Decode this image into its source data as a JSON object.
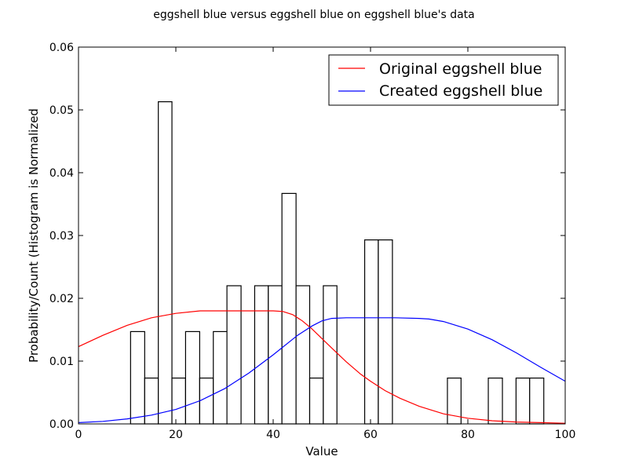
{
  "chart_data": {
    "type": "histogram-with-lines",
    "title": "eggshell blue versus eggshell blue on eggshell blue's data",
    "xlabel": "Value",
    "ylabel": "Probability/Count (Histogram is Normalized",
    "xlim": [
      0,
      100
    ],
    "ylim": [
      0,
      0.06
    ],
    "xticks": [
      0,
      20,
      40,
      60,
      80,
      100
    ],
    "xtick_labels": [
      "0",
      "20",
      "40",
      "60",
      "80",
      "100"
    ],
    "yticks": [
      0,
      0.01,
      0.02,
      0.03,
      0.04,
      0.05,
      0.06
    ],
    "ytick_labels": [
      "0.00",
      "0.01",
      "0.02",
      "0.03",
      "0.04",
      "0.05",
      "0.06"
    ],
    "grid": false,
    "legend_position": "top-right",
    "bins": [
      {
        "x0": 10.7,
        "x1": 13.6,
        "value": 0.0147
      },
      {
        "x0": 13.6,
        "x1": 16.4,
        "value": 0.0073
      },
      {
        "x0": 16.4,
        "x1": 19.2,
        "value": 0.0513
      },
      {
        "x0": 19.2,
        "x1": 22.0,
        "value": 0.0073
      },
      {
        "x0": 22.0,
        "x1": 24.9,
        "value": 0.0147
      },
      {
        "x0": 24.9,
        "x1": 27.7,
        "value": 0.0073
      },
      {
        "x0": 27.7,
        "x1": 30.5,
        "value": 0.0147
      },
      {
        "x0": 30.5,
        "x1": 33.4,
        "value": 0.022
      },
      {
        "x0": 33.4,
        "x1": 36.2,
        "value": 0.0
      },
      {
        "x0": 36.2,
        "x1": 39.0,
        "value": 0.022
      },
      {
        "x0": 39.0,
        "x1": 41.8,
        "value": 0.022
      },
      {
        "x0": 41.8,
        "x1": 44.7,
        "value": 0.0367
      },
      {
        "x0": 44.7,
        "x1": 47.5,
        "value": 0.022
      },
      {
        "x0": 47.5,
        "x1": 50.3,
        "value": 0.0073
      },
      {
        "x0": 50.3,
        "x1": 53.1,
        "value": 0.022
      },
      {
        "x0": 53.1,
        "x1": 56.0,
        "value": 0.0
      },
      {
        "x0": 56.0,
        "x1": 58.8,
        "value": 0.0
      },
      {
        "x0": 58.8,
        "x1": 61.6,
        "value": 0.0293
      },
      {
        "x0": 61.6,
        "x1": 64.5,
        "value": 0.0293
      },
      {
        "x0": 64.5,
        "x1": 67.3,
        "value": 0.0
      },
      {
        "x0": 67.3,
        "x1": 70.1,
        "value": 0.0
      },
      {
        "x0": 70.1,
        "x1": 72.9,
        "value": 0.0
      },
      {
        "x0": 72.9,
        "x1": 75.8,
        "value": 0.0
      },
      {
        "x0": 75.8,
        "x1": 78.6,
        "value": 0.0073
      },
      {
        "x0": 78.6,
        "x1": 81.4,
        "value": 0.0
      },
      {
        "x0": 81.4,
        "x1": 84.2,
        "value": 0.0
      },
      {
        "x0": 84.2,
        "x1": 87.1,
        "value": 0.0073
      },
      {
        "x0": 87.1,
        "x1": 89.9,
        "value": 0.0
      },
      {
        "x0": 89.9,
        "x1": 92.7,
        "value": 0.0073
      },
      {
        "x0": 92.7,
        "x1": 95.6,
        "value": 0.0073
      }
    ],
    "series": [
      {
        "name": "Original eggshell blue",
        "color": "#ff0000",
        "x": [
          0,
          5,
          10,
          15,
          20,
          25,
          30,
          35,
          40,
          42,
          44,
          46,
          48,
          50,
          52,
          55,
          58,
          60,
          63,
          66,
          70,
          75,
          80,
          85,
          90,
          95,
          100
        ],
        "y": [
          0.0123,
          0.0141,
          0.0157,
          0.0169,
          0.0176,
          0.018,
          0.018,
          0.018,
          0.018,
          0.0179,
          0.0174,
          0.0164,
          0.0151,
          0.0136,
          0.0121,
          0.0099,
          0.0079,
          0.0068,
          0.0053,
          0.0041,
          0.0028,
          0.0016,
          0.0009,
          0.0005,
          0.0003,
          0.0002,
          0.0001
        ]
      },
      {
        "name": "Created eggshell blue",
        "color": "#0000ff",
        "x": [
          0,
          5,
          10,
          15,
          20,
          25,
          30,
          35,
          40,
          45,
          48,
          50,
          52,
          55,
          60,
          65,
          70,
          72,
          75,
          80,
          85,
          90,
          95,
          100
        ],
        "y": [
          0.0002,
          0.0004,
          0.0008,
          0.0014,
          0.0023,
          0.0037,
          0.0056,
          0.0081,
          0.011,
          0.0141,
          0.0156,
          0.0164,
          0.0168,
          0.0169,
          0.0169,
          0.0169,
          0.0168,
          0.0167,
          0.0163,
          0.0151,
          0.0134,
          0.0113,
          0.009,
          0.0068
        ]
      }
    ]
  }
}
